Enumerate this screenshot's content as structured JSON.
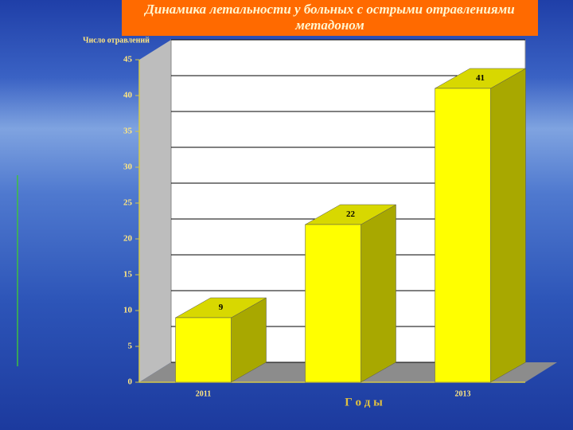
{
  "chart_data": {
    "type": "bar3d",
    "title": "Динамика летальности у больных с острыми отравлениями метадоном",
    "y_label": "Число отравлений",
    "x_label": "Г о д ы",
    "categories": [
      "2011",
      null,
      "2013"
    ],
    "values": [
      9,
      22,
      41
    ],
    "color": "#ffff00",
    "ylim": [
      0,
      45
    ],
    "yticks": [
      0,
      5,
      10,
      15,
      20,
      25,
      30,
      35,
      40,
      45
    ],
    "grid": true
  }
}
